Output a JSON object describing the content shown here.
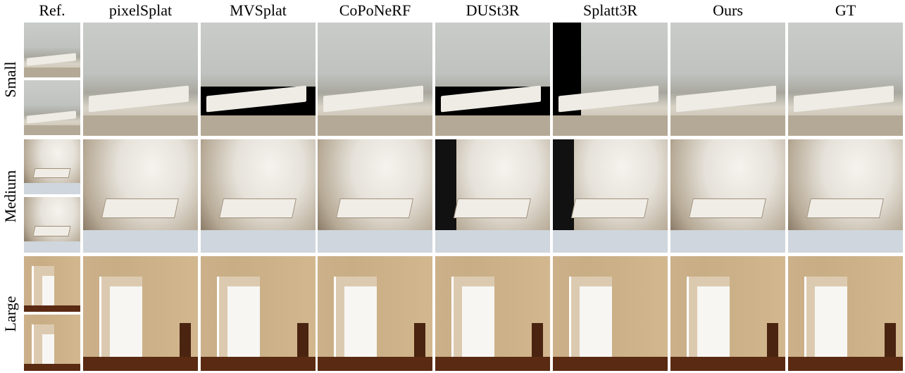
{
  "columns": {
    "ref": "Ref.",
    "c1": "pixelSplat",
    "c2": "MVSplat",
    "c3": "CoPoNeRF",
    "c4": "DUSt3R",
    "c5": "Splatt3R",
    "c6": "Ours",
    "c7": "GT"
  },
  "rows": {
    "r1": "Small",
    "r2": "Medium",
    "r3": "Large"
  }
}
